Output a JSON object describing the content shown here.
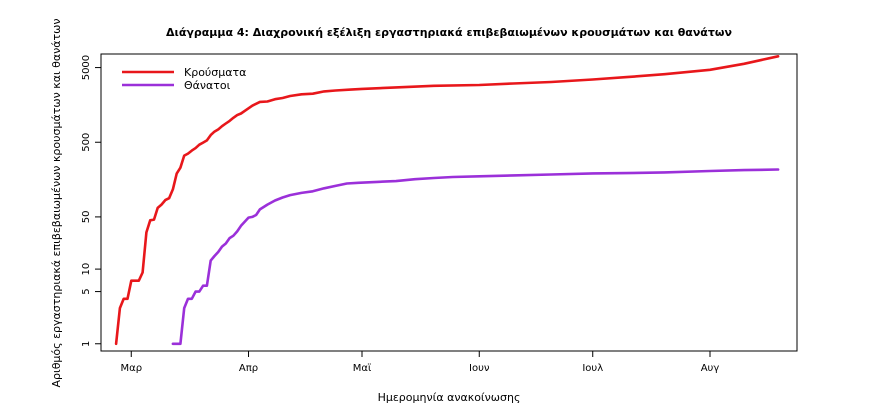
{
  "chart_data": {
    "type": "line",
    "title": "Διάγραμμα 4: Διαχρονική εξέλιξη εργαστηριακά επιβεβαιωμένων κρουσμάτων και θανάτων",
    "xlabel": "Ημερομηνία ανακοίνωσης",
    "ylabel": "Αριθμός εργαστηριακά επιβεβαιωμένων κρουσμάτων και θανάτων",
    "y_scale": "log",
    "ylim": [
      0.8,
      7600
    ],
    "xlim": [
      "2020-02-22",
      "2020-08-24"
    ],
    "y_ticks": [
      1,
      5,
      10,
      50,
      500,
      5000
    ],
    "x_ticks": [
      {
        "date": "2020-03-01",
        "label": "Μαρ"
      },
      {
        "date": "2020-04-01",
        "label": "Απρ"
      },
      {
        "date": "2020-05-01",
        "label": "Μαϊ"
      },
      {
        "date": "2020-06-01",
        "label": "Ιουν"
      },
      {
        "date": "2020-07-01",
        "label": "Ιουλ"
      },
      {
        "date": "2020-08-01",
        "label": "Αυγ"
      }
    ],
    "legend_position": "top-left",
    "series": [
      {
        "name": "Κρούσματα",
        "color": "#e8171b",
        "points": [
          [
            "2020-02-26",
            1
          ],
          [
            "2020-02-27",
            3
          ],
          [
            "2020-02-28",
            4
          ],
          [
            "2020-02-29",
            4
          ],
          [
            "2020-03-01",
            7
          ],
          [
            "2020-03-03",
            7
          ],
          [
            "2020-03-04",
            9
          ],
          [
            "2020-03-05",
            31
          ],
          [
            "2020-03-06",
            45
          ],
          [
            "2020-03-07",
            46
          ],
          [
            "2020-03-08",
            66
          ],
          [
            "2020-03-09",
            73
          ],
          [
            "2020-03-10",
            84
          ],
          [
            "2020-03-11",
            89
          ],
          [
            "2020-03-12",
            117
          ],
          [
            "2020-03-13",
            190
          ],
          [
            "2020-03-14",
            228
          ],
          [
            "2020-03-15",
            331
          ],
          [
            "2020-03-16",
            352
          ],
          [
            "2020-03-17",
            387
          ],
          [
            "2020-03-18",
            418
          ],
          [
            "2020-03-19",
            464
          ],
          [
            "2020-03-20",
            495
          ],
          [
            "2020-03-21",
            530
          ],
          [
            "2020-03-22",
            624
          ],
          [
            "2020-03-23",
            695
          ],
          [
            "2020-03-24",
            743
          ],
          [
            "2020-03-25",
            821
          ],
          [
            "2020-03-26",
            892
          ],
          [
            "2020-03-27",
            966
          ],
          [
            "2020-03-28",
            1061
          ],
          [
            "2020-03-29",
            1156
          ],
          [
            "2020-03-30",
            1212
          ],
          [
            "2020-03-31",
            1314
          ],
          [
            "2020-04-02",
            1544
          ],
          [
            "2020-04-04",
            1735
          ],
          [
            "2020-04-06",
            1755
          ],
          [
            "2020-04-08",
            1884
          ],
          [
            "2020-04-10",
            1955
          ],
          [
            "2020-04-12",
            2081
          ],
          [
            "2020-04-15",
            2192
          ],
          [
            "2020-04-18",
            2235
          ],
          [
            "2020-04-21",
            2401
          ],
          [
            "2020-04-24",
            2463
          ],
          [
            "2020-04-28",
            2534
          ],
          [
            "2020-05-01",
            2591
          ],
          [
            "2020-05-10",
            2710
          ],
          [
            "2020-05-20",
            2850
          ],
          [
            "2020-06-01",
            2918
          ],
          [
            "2020-06-10",
            3058
          ],
          [
            "2020-06-20",
            3203
          ],
          [
            "2020-07-01",
            3458
          ],
          [
            "2020-07-10",
            3732
          ],
          [
            "2020-07-20",
            4077
          ],
          [
            "2020-08-01",
            4662
          ],
          [
            "2020-08-10",
            5623
          ],
          [
            "2020-08-19",
            7075
          ]
        ]
      },
      {
        "name": "Θάνατοι",
        "color": "#9b30d9",
        "points": [
          [
            "2020-03-12",
            1
          ],
          [
            "2020-03-14",
            1
          ],
          [
            "2020-03-15",
            3
          ],
          [
            "2020-03-16",
            4
          ],
          [
            "2020-03-17",
            4
          ],
          [
            "2020-03-18",
            5
          ],
          [
            "2020-03-19",
            5
          ],
          [
            "2020-03-20",
            6
          ],
          [
            "2020-03-21",
            6
          ],
          [
            "2020-03-22",
            13
          ],
          [
            "2020-03-23",
            15
          ],
          [
            "2020-03-24",
            17
          ],
          [
            "2020-03-25",
            20
          ],
          [
            "2020-03-26",
            22
          ],
          [
            "2020-03-27",
            26
          ],
          [
            "2020-03-28",
            28
          ],
          [
            "2020-03-29",
            32
          ],
          [
            "2020-03-30",
            38
          ],
          [
            "2020-03-31",
            43
          ],
          [
            "2020-04-01",
            49
          ],
          [
            "2020-04-02",
            50
          ],
          [
            "2020-04-03",
            53
          ],
          [
            "2020-04-04",
            63
          ],
          [
            "2020-04-06",
            73
          ],
          [
            "2020-04-08",
            83
          ],
          [
            "2020-04-10",
            91
          ],
          [
            "2020-04-12",
            98
          ],
          [
            "2020-04-15",
            105
          ],
          [
            "2020-04-18",
            110
          ],
          [
            "2020-04-21",
            121
          ],
          [
            "2020-04-24",
            130
          ],
          [
            "2020-04-27",
            140
          ],
          [
            "2020-04-30",
            143
          ],
          [
            "2020-05-05",
            147
          ],
          [
            "2020-05-10",
            151
          ],
          [
            "2020-05-15",
            160
          ],
          [
            "2020-05-20",
            166
          ],
          [
            "2020-05-25",
            171
          ],
          [
            "2020-06-01",
            175
          ],
          [
            "2020-06-10",
            180
          ],
          [
            "2020-06-20",
            185
          ],
          [
            "2020-07-01",
            191
          ],
          [
            "2020-07-10",
            193
          ],
          [
            "2020-07-20",
            197
          ],
          [
            "2020-08-01",
            206
          ],
          [
            "2020-08-10",
            212
          ],
          [
            "2020-08-19",
            216
          ]
        ]
      }
    ]
  }
}
